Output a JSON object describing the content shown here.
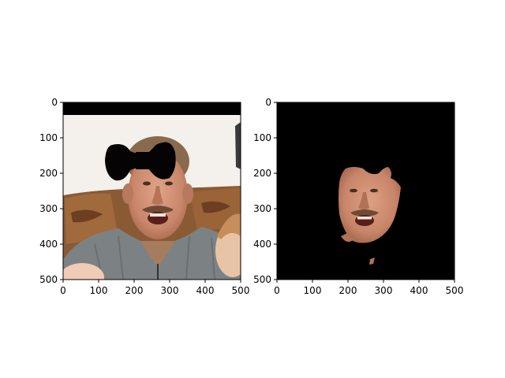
{
  "chart_data": [
    {
      "type": "image",
      "content": "photo",
      "xlim": [
        0,
        500
      ],
      "ylim": [
        500,
        0
      ],
      "x_ticks": [
        0,
        100,
        200,
        300,
        400,
        500
      ],
      "y_ticks": [
        0,
        100,
        200,
        300,
        400,
        500
      ],
      "x_tick_labels": [
        "0",
        "100",
        "200",
        "300",
        "400",
        "500"
      ],
      "y_tick_labels": [
        "0",
        "100",
        "200",
        "300",
        "400",
        "500"
      ],
      "bow_tie_color": "#050303",
      "background_colors": {
        "wall": "#f4f1ec",
        "couch": "#8a5a34",
        "shirt": "#7c8284"
      }
    },
    {
      "type": "image",
      "content": "face-mask",
      "xlim": [
        0,
        500
      ],
      "ylim": [
        500,
        0
      ],
      "x_ticks": [
        0,
        100,
        200,
        300,
        400,
        500
      ],
      "y_ticks": [
        0,
        100,
        200,
        300,
        400,
        500
      ],
      "x_tick_labels": [
        "0",
        "100",
        "200",
        "300",
        "400",
        "500"
      ],
      "y_tick_labels": [
        "0",
        "100",
        "200",
        "300",
        "400",
        "500"
      ],
      "background_color": "#000000",
      "skin_color": "#c8866a"
    }
  ]
}
